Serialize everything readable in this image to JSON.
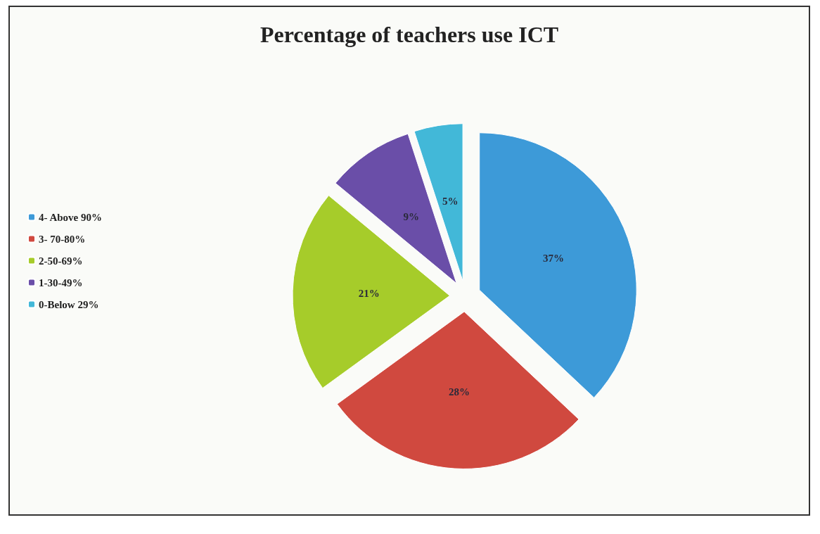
{
  "chart_data": {
    "type": "pie",
    "title": "Percentage of teachers use ICT",
    "categories": [
      "4- Above 90%",
      "3- 70-80%",
      "2-50-69%",
      "1-30-49%",
      "0-Below 29%"
    ],
    "values": [
      37,
      28,
      21,
      9,
      5
    ],
    "colors": [
      "#3d9ad8",
      "#d0493f",
      "#a6cc2a",
      "#6a4ea8",
      "#42b8d8"
    ],
    "value_labels": [
      "37%",
      "28%",
      "21%",
      "9%",
      "5%"
    ],
    "legend": "left"
  }
}
